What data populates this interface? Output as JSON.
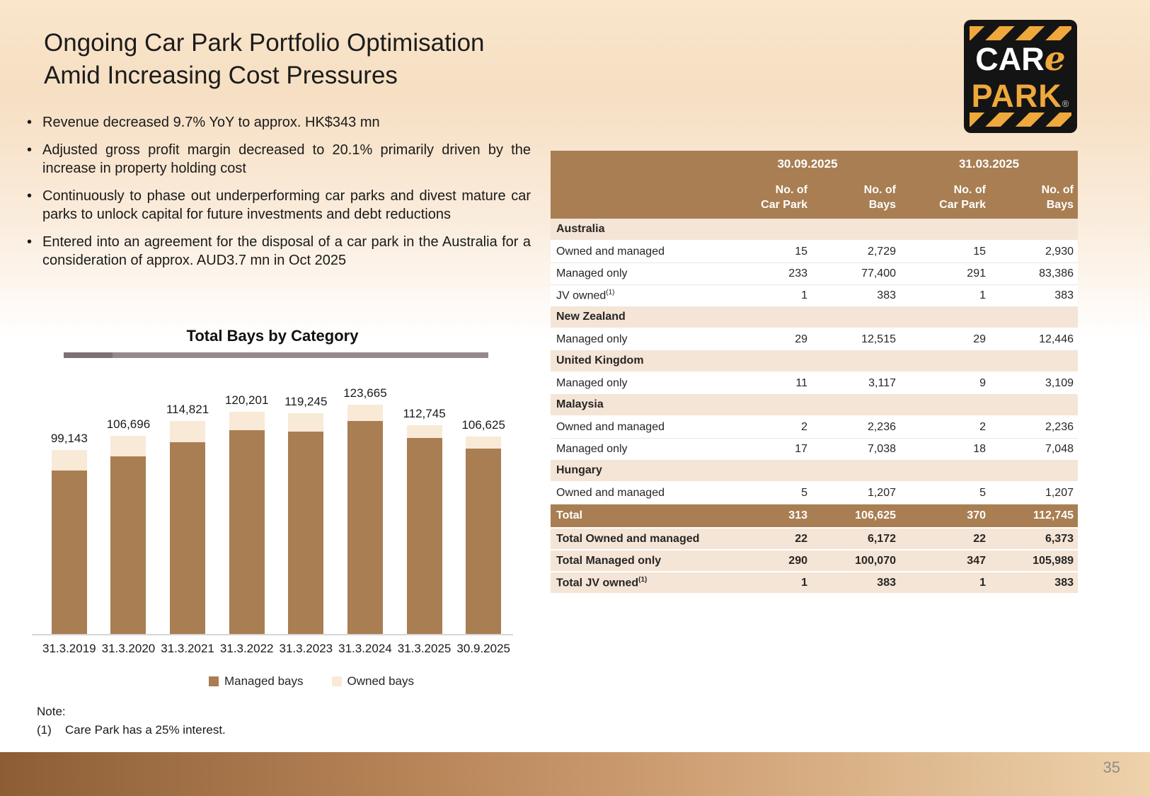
{
  "slide": {
    "title_line1": "Ongoing Car Park Portfolio Optimisation",
    "title_line2": "Amid Increasing Cost Pressures",
    "page_number": "35"
  },
  "logo": {
    "car": "CAR",
    "e": "e",
    "park": "PARK",
    "reg": "®"
  },
  "bullets": [
    "Revenue decreased 9.7% YoY to approx. HK$343 mn",
    "Adjusted gross profit margin decreased to 20.1% primarily driven by the increase in property holding cost",
    "Continuously to phase out underperforming car parks and divest mature car parks to unlock capital for future investments and debt reductions",
    "Entered into an agreement for the disposal of a car park in the Australia for a consideration of approx. AUD3.7 mn in Oct 2025"
  ],
  "chart_data": {
    "type": "bar",
    "stacked": true,
    "title": "Total Bays by Category",
    "categories": [
      "31.3.2019",
      "31.3.2020",
      "31.3.2021",
      "31.3.2022",
      "31.3.2023",
      "31.3.2024",
      "31.3.2025",
      "30.9.2025"
    ],
    "series": [
      {
        "name": "Managed bays",
        "color": "#A87E52",
        "values": [
          88100,
          95700,
          103400,
          110200,
          109400,
          114800,
          105989,
          100070
        ]
      },
      {
        "name": "Owned bays",
        "color": "#F9E9D7",
        "values": [
          11043,
          10996,
          11421,
          10001,
          9845,
          8865,
          6756,
          6555
        ]
      }
    ],
    "totals": [
      99143,
      106696,
      114821,
      120201,
      119245,
      123665,
      112745,
      106625
    ],
    "total_labels": [
      "99,143",
      "106,696",
      "114,821",
      "120,201",
      "119,245",
      "123,665",
      "112,745",
      "106,625"
    ],
    "ylim": [
      0,
      133700
    ],
    "grid": false,
    "legend_position": "bottom"
  },
  "note": {
    "label": "Note:",
    "ref": "(1)",
    "text": "Care Park has a 25% interest."
  },
  "table": {
    "groups": [
      "30.09.2025",
      "31.03.2025"
    ],
    "col_headers": [
      {
        "line1": "No. of",
        "line2": "Car Park"
      },
      {
        "line1": "No. of",
        "line2": "Bays"
      },
      {
        "line1": "No. of",
        "line2": "Car Park"
      },
      {
        "line1": "No. of",
        "line2": "Bays"
      }
    ],
    "rows": [
      {
        "type": "section",
        "label": "Australia"
      },
      {
        "type": "data",
        "label": "Owned and managed",
        "values": [
          "15",
          "2,729",
          "15",
          "2,930"
        ]
      },
      {
        "type": "data",
        "label": "Managed only",
        "values": [
          "233",
          "77,400",
          "291",
          "83,386"
        ]
      },
      {
        "type": "data",
        "label": "JV owned",
        "sup": "(1)",
        "values": [
          "1",
          "383",
          "1",
          "383"
        ]
      },
      {
        "type": "section",
        "label": "New Zealand"
      },
      {
        "type": "data",
        "label": "Managed only",
        "values": [
          "29",
          "12,515",
          "29",
          "12,446"
        ]
      },
      {
        "type": "section",
        "label": "United Kingdom"
      },
      {
        "type": "data",
        "label": "Managed only",
        "values": [
          "11",
          "3,117",
          "9",
          "3,109"
        ]
      },
      {
        "type": "section",
        "label": "Malaysia"
      },
      {
        "type": "data",
        "label": "Owned and managed",
        "values": [
          "2",
          "2,236",
          "2",
          "2,236"
        ]
      },
      {
        "type": "data",
        "label": "Managed only",
        "values": [
          "17",
          "7,038",
          "18",
          "7,048"
        ]
      },
      {
        "type": "section",
        "label": "Hungary"
      },
      {
        "type": "data",
        "label": "Owned and managed",
        "values": [
          "5",
          "1,207",
          "5",
          "1,207"
        ]
      },
      {
        "type": "total",
        "label": "Total",
        "values": [
          "313",
          "106,625",
          "370",
          "112,745"
        ]
      },
      {
        "type": "subtotal",
        "label": "Total Owned and managed",
        "values": [
          "22",
          "6,172",
          "22",
          "6,373"
        ]
      },
      {
        "type": "subtotal",
        "label": "Total Managed only",
        "values": [
          "290",
          "100,070",
          "347",
          "105,989"
        ]
      },
      {
        "type": "subtotal",
        "label": "Total JV owned",
        "sup": "(1)",
        "values": [
          "1",
          "383",
          "1",
          "383"
        ]
      }
    ]
  },
  "colors": {
    "table_header_brown": "#A87E52",
    "section_row_beige": "#F5E5D6",
    "managed_bar": "#A87E52",
    "owned_bar": "#F9E9D7",
    "logo_amber": "#EFA83C",
    "bottom_bar_left": "#8D5E36",
    "bottom_bar_right": "#EED2AB"
  }
}
